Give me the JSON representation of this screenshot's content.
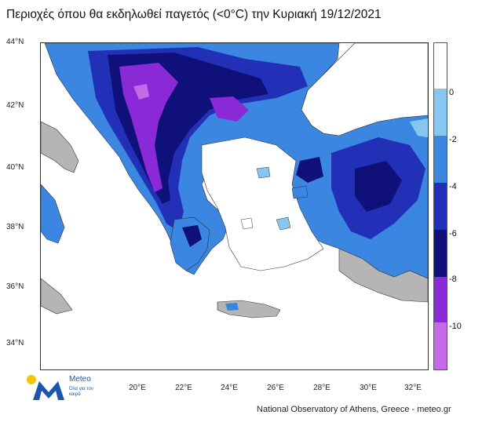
{
  "title": "Περιοχές όπου θα εκδηλωθεί παγετός (<0°C) την Κυριακή 19/12/2021",
  "y_axis_labels": [
    "44°N",
    "42°N",
    "40°N",
    "38°N",
    "36°N",
    "34°N"
  ],
  "x_axis_labels": [
    "20°E",
    "22°E",
    "24°E",
    "26°E",
    "28°E",
    "30°E",
    "32°E"
  ],
  "colorbar": {
    "labels": [
      "0",
      "-2",
      "-4",
      "-6",
      "-8",
      "-10"
    ],
    "colors": [
      "#ffffff",
      "#87c6f0",
      "#3a86e0",
      "#2230b8",
      "#10107a",
      "#8a2ad6",
      "#c46ae8"
    ]
  },
  "logo": {
    "name": "Meteo",
    "tagline": "Όλα για τον καιρό",
    "colors": {
      "sun": "#f5c400",
      "mark": "#1a56b0"
    }
  },
  "footer": "National Observatory of Athens, Greece - meteo.gr",
  "map_colors": {
    "sea": "#ffffff",
    "land_no_frost": "#b5b5b5"
  }
}
